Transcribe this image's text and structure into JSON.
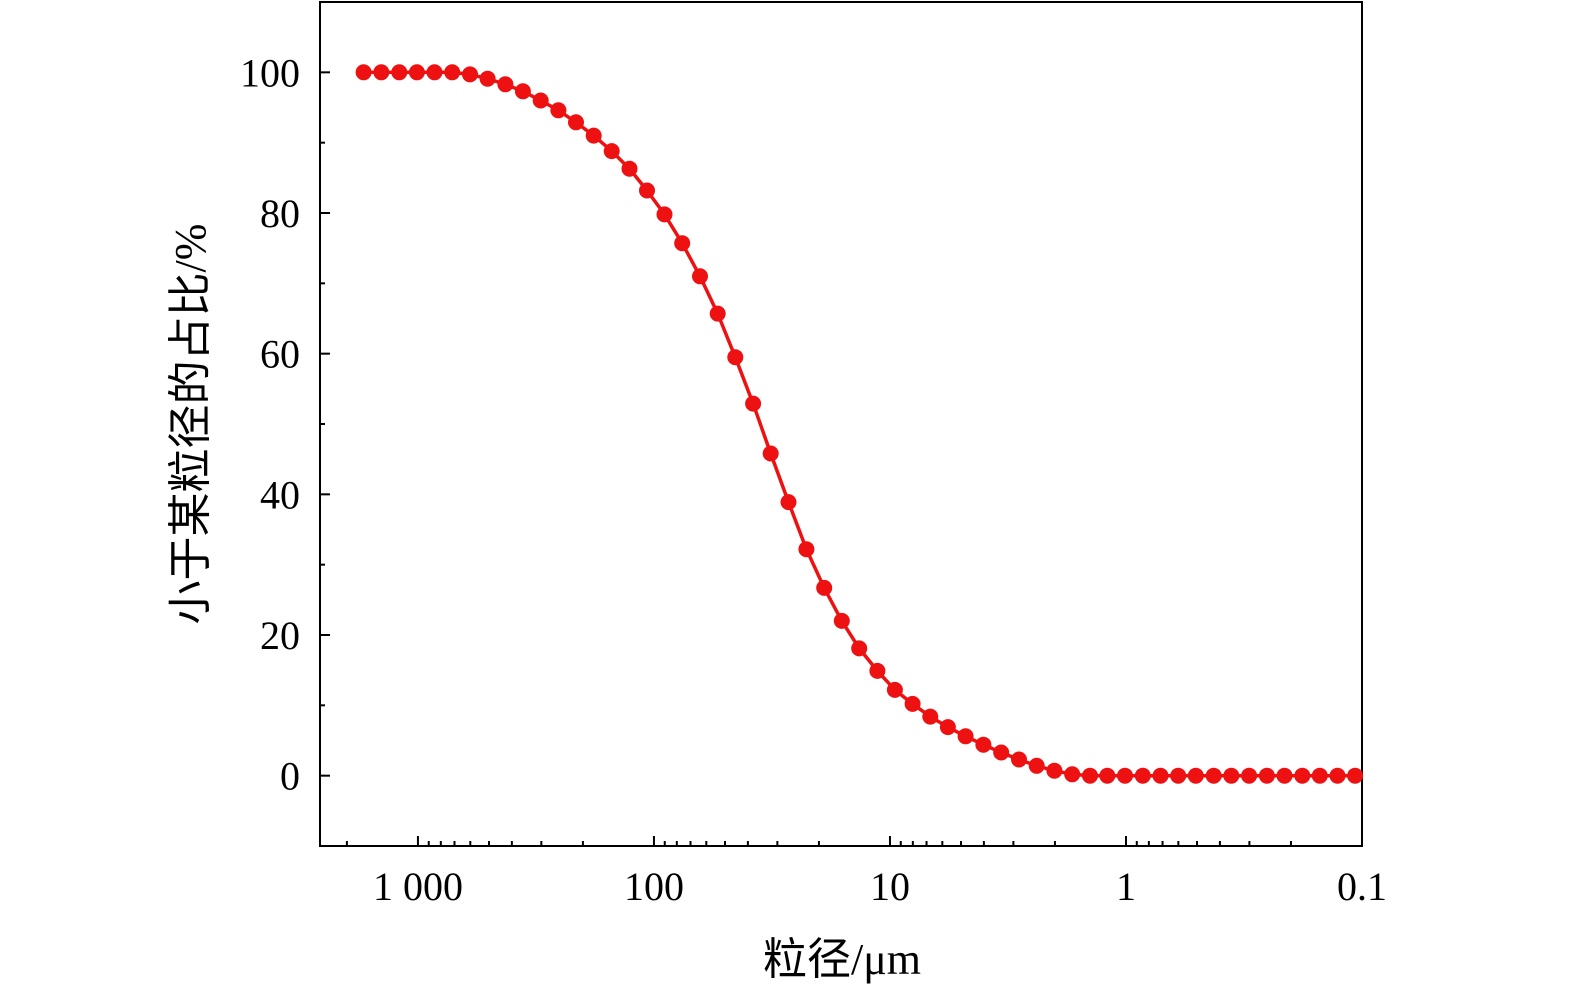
{
  "chart_data": {
    "type": "line",
    "title": "",
    "xlabel": "粒径/μm",
    "ylabel": "小于某粒径的占比/%",
    "x_scale": "log",
    "x_reversed": true,
    "xlim": [
      2600,
      0.1
    ],
    "ylim": [
      -10,
      110
    ],
    "grid": false,
    "legend": "none",
    "x_ticks": [
      {
        "value": 1000,
        "label": "1 000"
      },
      {
        "value": 100,
        "label": "100"
      },
      {
        "value": 10,
        "label": "10"
      },
      {
        "value": 1,
        "label": "1"
      },
      {
        "value": 0.1,
        "label": "0.1"
      }
    ],
    "y_ticks": [
      {
        "value": 0,
        "label": "0"
      },
      {
        "value": 20,
        "label": "20"
      },
      {
        "value": 40,
        "label": "40"
      },
      {
        "value": 60,
        "label": "60"
      },
      {
        "value": 80,
        "label": "80"
      },
      {
        "value": 100,
        "label": "100"
      }
    ],
    "series": [
      {
        "color": "#ee1111",
        "marker": "circle",
        "x": [
          1700,
          1430,
          1200,
          1010,
          851,
          716,
          602,
          507,
          426,
          359,
          302,
          254,
          214,
          180,
          151,
          127,
          107,
          90.2,
          75.9,
          63.8,
          53.7,
          45.2,
          38.0,
          32.0,
          26.9,
          22.6,
          19.0,
          16.0,
          13.5,
          11.3,
          9.53,
          8.02,
          6.75,
          5.68,
          4.78,
          4.02,
          3.38,
          2.84,
          2.39,
          2.01,
          1.69,
          1.42,
          1.2,
          1.01,
          0.849,
          0.714,
          0.601,
          0.506,
          0.425,
          0.358,
          0.301,
          0.253,
          0.213,
          0.179,
          0.151,
          0.127,
          0.107
        ],
        "y": [
          100,
          100,
          100,
          100,
          100,
          100,
          99.7,
          99.1,
          98.3,
          97.3,
          96.0,
          94.6,
          92.9,
          91.0,
          88.8,
          86.3,
          83.2,
          79.8,
          75.7,
          71.0,
          65.7,
          59.5,
          52.9,
          45.8,
          38.9,
          32.2,
          26.7,
          22.0,
          18.1,
          14.9,
          12.2,
          10.2,
          8.4,
          6.9,
          5.6,
          4.4,
          3.3,
          2.3,
          1.4,
          0.7,
          0.2,
          0,
          0,
          0,
          0,
          0,
          0,
          0,
          0,
          0,
          0,
          0,
          0,
          0,
          0,
          0,
          0
        ]
      }
    ]
  }
}
